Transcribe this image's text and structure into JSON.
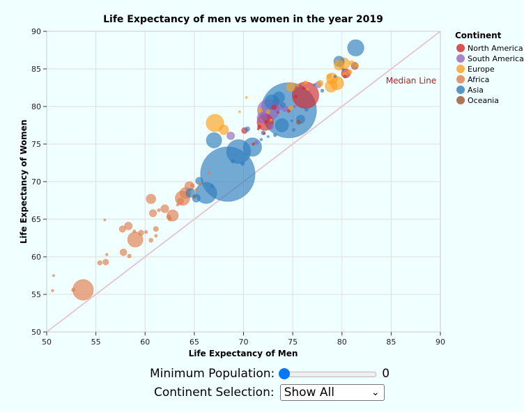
{
  "chart_data": {
    "type": "scatter",
    "title": "Life Expectancy of men vs women in the year 2019",
    "xlabel": "Life Expectancy of Men",
    "ylabel": "Life Expectancy of Women",
    "xlim": [
      50,
      90
    ],
    "ylim": [
      50,
      90
    ],
    "xticks": [
      "50",
      "55",
      "60",
      "65",
      "70",
      "75",
      "80",
      "85",
      "90"
    ],
    "yticks": [
      "50",
      "55",
      "60",
      "65",
      "70",
      "75",
      "80",
      "85",
      "90"
    ],
    "grid": true,
    "legend": {
      "title": "Continent",
      "placement": "right",
      "entries": [
        {
          "label": "North America",
          "color": "#d62728"
        },
        {
          "label": "South America",
          "color": "#9467bd"
        },
        {
          "label": "Europe",
          "color": "#ff9f1c"
        },
        {
          "label": "Africa",
          "color": "#e07c4c"
        },
        {
          "label": "Asia",
          "color": "#2f7dbd"
        },
        {
          "label": "Oceania",
          "color": "#a0522d"
        }
      ]
    },
    "median_line": {
      "label": "Median Line",
      "color": "#b22222",
      "from": [
        50,
        50
      ],
      "to": [
        90,
        90
      ]
    },
    "points_note": "bubble size encodes population",
    "series": [
      {
        "name": "Asia",
        "color": "#2f7dbd",
        "points": [
          [
            68.4,
            71.0,
            1390
          ],
          [
            74.6,
            79.5,
            1430
          ],
          [
            69.5,
            74.0,
            270
          ],
          [
            66.2,
            68.5,
            210
          ],
          [
            70.9,
            74.6,
            160
          ],
          [
            67.0,
            75.5,
            110
          ],
          [
            81.4,
            87.8,
            126
          ],
          [
            79.7,
            86.0,
            52
          ],
          [
            72.9,
            80.6,
            98
          ],
          [
            73.9,
            77.5,
            83
          ],
          [
            75.8,
            78.3,
            33
          ],
          [
            64.6,
            68.5,
            38
          ],
          [
            65.2,
            67.8,
            30
          ],
          [
            65.5,
            70.1,
            25
          ],
          [
            73.6,
            81.2,
            60
          ],
          [
            70.4,
            77.0,
            10
          ],
          [
            72.0,
            76.5,
            8
          ],
          [
            74.0,
            80.2,
            12
          ],
          [
            76.4,
            79.6,
            6
          ],
          [
            78.0,
            82.1,
            5
          ],
          [
            71.8,
            75.6,
            3
          ],
          [
            75.1,
            76.9,
            4
          ],
          [
            79.3,
            84.0,
            3
          ],
          [
            80.1,
            84.9,
            2
          ],
          [
            66.8,
            69.4,
            4
          ],
          [
            68.9,
            72.7,
            6
          ],
          [
            69.9,
            72.4,
            7
          ],
          [
            73.2,
            76.2,
            5
          ],
          [
            77.2,
            82.9,
            3
          ],
          [
            72.5,
            76.0,
            2
          ],
          [
            74.9,
            78.1,
            2
          ],
          [
            73.3,
            80.6,
            20
          ]
        ]
      },
      {
        "name": "Europe",
        "color": "#ff9f1c",
        "points": [
          [
            67.1,
            77.8,
            145
          ],
          [
            74.8,
            79.8,
            9
          ],
          [
            76.3,
            83.2,
            6
          ],
          [
            79.0,
            83.7,
            60
          ],
          [
            79.7,
            85.5,
            47
          ],
          [
            80.2,
            85.7,
            65
          ],
          [
            79.5,
            83.1,
            83
          ],
          [
            78.9,
            82.7,
            68
          ],
          [
            81.0,
            85.8,
            10
          ],
          [
            80.8,
            84.6,
            9
          ],
          [
            78.7,
            84.0,
            11
          ],
          [
            74.8,
            82.6,
            38
          ],
          [
            71.7,
            79.5,
            10
          ],
          [
            72.5,
            79.3,
            7
          ],
          [
            75.5,
            82.8,
            4
          ],
          [
            77.8,
            83.1,
            17
          ],
          [
            80.3,
            84.3,
            8
          ],
          [
            76.5,
            82.3,
            2
          ],
          [
            81.5,
            85.5,
            5
          ],
          [
            72.8,
            78.2,
            3
          ],
          [
            68.0,
            76.9,
            44
          ],
          [
            69.6,
            79.3,
            2
          ],
          [
            70.3,
            81.2,
            1
          ]
        ]
      },
      {
        "name": "North America",
        "color": "#d62728",
        "points": [
          [
            76.3,
            81.5,
            330
          ],
          [
            72.2,
            77.9,
            125
          ],
          [
            80.4,
            84.4,
            38
          ],
          [
            73.1,
            79.9,
            11
          ],
          [
            70.1,
            76.8,
            17
          ],
          [
            72.3,
            78.0,
            4
          ],
          [
            71.6,
            77.3,
            6
          ],
          [
            74.6,
            79.4,
            4
          ],
          [
            75.3,
            81.3,
            5
          ],
          [
            71.0,
            75.0,
            3
          ],
          [
            72.1,
            76.4,
            2
          ],
          [
            71.5,
            77.0,
            1
          ],
          [
            73.5,
            79.2,
            1
          ],
          [
            76.1,
            82.4,
            1
          ]
        ]
      },
      {
        "name": "South America",
        "color": "#9467bd",
        "points": [
          [
            72.5,
            79.5,
            212
          ],
          [
            73.4,
            80.0,
            45
          ],
          [
            77.6,
            82.9,
            19
          ],
          [
            71.9,
            78.5,
            50
          ],
          [
            68.7,
            76.1,
            28
          ],
          [
            74.2,
            79.7,
            17
          ],
          [
            75.2,
            80.0,
            3
          ],
          [
            72.8,
            77.3,
            11
          ],
          [
            71.3,
            75.2,
            7
          ]
        ]
      },
      {
        "name": "Africa",
        "color": "#e07c4c",
        "points": [
          [
            53.7,
            55.6,
            200
          ],
          [
            59.0,
            62.3,
            110
          ],
          [
            63.8,
            67.8,
            100
          ],
          [
            64.1,
            68.5,
            58
          ],
          [
            64.5,
            69.4,
            40
          ],
          [
            60.6,
            67.7,
            43
          ],
          [
            62.8,
            65.5,
            60
          ],
          [
            58.3,
            64.1,
            28
          ],
          [
            60.8,
            65.8,
            25
          ],
          [
            62.0,
            66.4,
            30
          ],
          [
            57.7,
            63.7,
            20
          ],
          [
            56.0,
            59.3,
            16
          ],
          [
            57.8,
            60.6,
            22
          ],
          [
            55.4,
            59.2,
            10
          ],
          [
            52.7,
            55.6,
            6
          ],
          [
            59.6,
            63.2,
            13
          ],
          [
            60.6,
            62.2,
            8
          ],
          [
            61.1,
            63.7,
            12
          ],
          [
            63.6,
            67.4,
            19
          ],
          [
            62.4,
            65.3,
            9
          ],
          [
            65.6,
            69.7,
            4
          ],
          [
            64.8,
            69.5,
            6
          ],
          [
            58.4,
            60.1,
            7
          ],
          [
            61.1,
            62.8,
            4
          ],
          [
            56.1,
            60.3,
            3
          ],
          [
            50.7,
            57.5,
            2
          ],
          [
            50.6,
            55.5,
            3
          ],
          [
            55.9,
            64.9,
            2
          ],
          [
            60.1,
            63.3,
            5
          ],
          [
            66.5,
            71.2,
            3
          ],
          [
            61.4,
            66.2,
            5
          ],
          [
            63.3,
            66.9,
            3
          ],
          [
            62.5,
            65.0,
            6
          ],
          [
            58.9,
            63.4,
            4
          ],
          [
            65.2,
            68.9,
            4
          ]
        ]
      },
      {
        "name": "Oceania",
        "color": "#a0522d",
        "points": [
          [
            75.6,
            77.9,
            9
          ],
          [
            81.3,
            85.4,
            25
          ],
          [
            80.3,
            84.0,
            5
          ],
          [
            65.0,
            68.0,
            4
          ]
        ]
      }
    ]
  },
  "controls": {
    "min_population_label": "Minimum Population:",
    "min_population_value": "0",
    "min_population_fraction": 0,
    "continent_label": "Continent Selection:",
    "continent_selected": "Show All"
  }
}
